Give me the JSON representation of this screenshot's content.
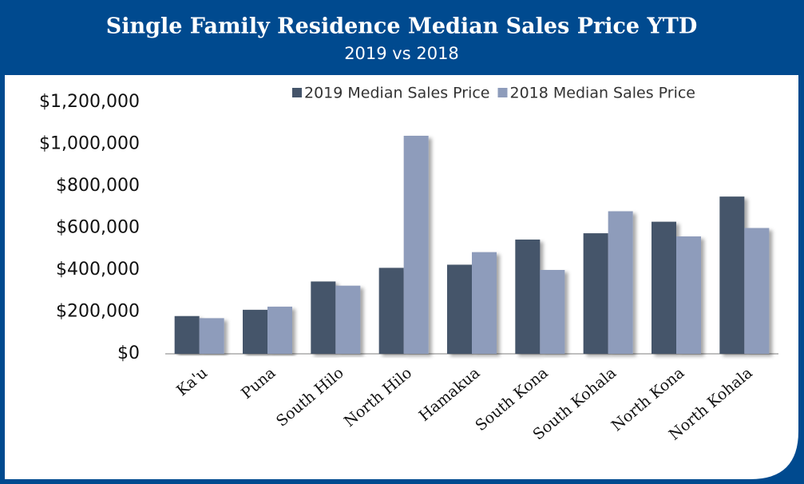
{
  "chart_data": {
    "type": "bar",
    "title": "Single Family Residence Median Sales Price YTD",
    "subtitle": "2019 vs 2018",
    "categories": [
      "Ka'u",
      "Puna",
      "South Hilo",
      "North Hilo",
      "Hamakua",
      "South Kona",
      "South Kohala",
      "North Kona",
      "North Kohala"
    ],
    "series": [
      {
        "name": "2019 Median Sales Price",
        "color": "#44546a",
        "values": [
          180000,
          210000,
          345000,
          410000,
          425000,
          545000,
          575000,
          630000,
          750000
        ]
      },
      {
        "name": "2018 Median Sales Price",
        "color": "#8e9cbb",
        "values": [
          170000,
          225000,
          325000,
          1040000,
          485000,
          400000,
          680000,
          560000,
          600000
        ]
      }
    ],
    "ylim": [
      0,
      1200000
    ],
    "yticks": [
      {
        "value": 0,
        "label": "$0"
      },
      {
        "value": 200000,
        "label": "$200,000"
      },
      {
        "value": 400000,
        "label": "$400,000"
      },
      {
        "value": 600000,
        "label": "$600,000"
      },
      {
        "value": 800000,
        "label": "$800,000"
      },
      {
        "value": 1000000,
        "label": "$1,000,000"
      },
      {
        "value": 1200000,
        "label": "$1,200,000"
      }
    ],
    "grid": false,
    "legend": "top-right"
  }
}
